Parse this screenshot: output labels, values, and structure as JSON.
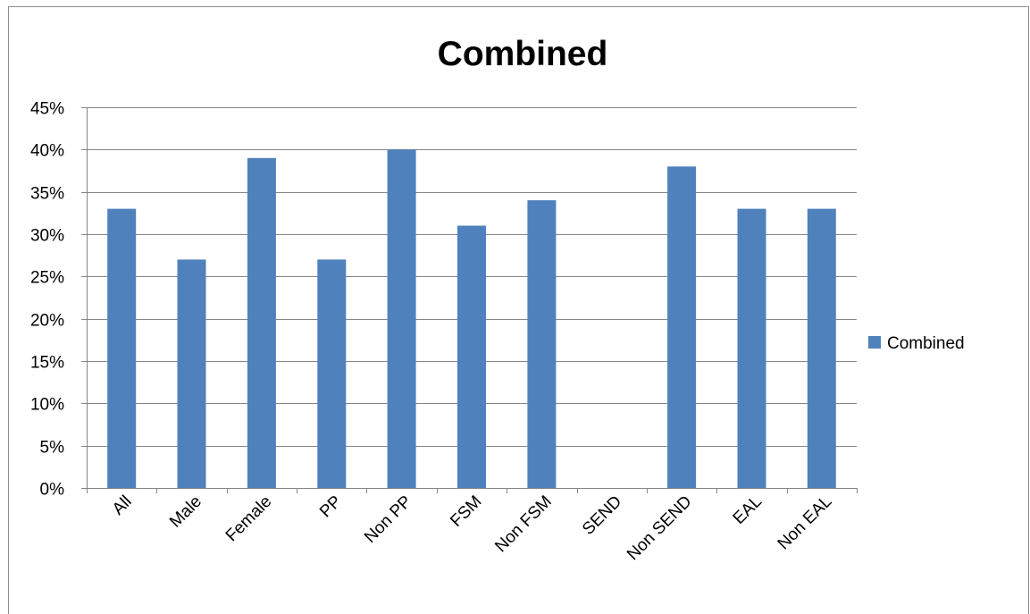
{
  "chart_data": {
    "type": "bar",
    "title": "Combined",
    "xlabel": "",
    "ylabel": "",
    "categories": [
      "All",
      "Male",
      "Female",
      "PP",
      "Non PP",
      "FSM",
      "Non FSM",
      "SEND",
      "Non SEND",
      "EAL",
      "Non EAL"
    ],
    "series": [
      {
        "name": "Combined",
        "values": [
          0.33,
          0.27,
          0.39,
          0.27,
          0.4,
          0.31,
          0.34,
          0,
          0.38,
          0.33,
          0.33
        ],
        "color": "#4f81bd"
      }
    ],
    "ylim": [
      0,
      0.45
    ],
    "yticks": [
      "0%",
      "5%",
      "10%",
      "15%",
      "20%",
      "25%",
      "30%",
      "35%",
      "40%",
      "45%"
    ],
    "grid": true,
    "legend_position": "right"
  },
  "colors": {
    "bar": "#4f81bd",
    "grid": "#868686",
    "axis": "#868686"
  }
}
